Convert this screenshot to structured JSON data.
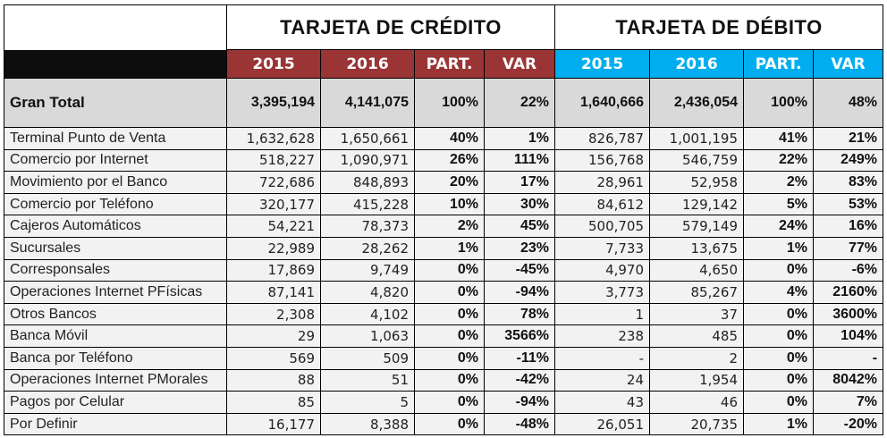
{
  "colors": {
    "credit_header": "#9b3535",
    "debit_header": "#00aeef",
    "black_bar": "#0d0d0d",
    "total_row_bg": "#d9d9d9",
    "data_row_bg": "#f2f2f2"
  },
  "groups": {
    "credit": {
      "title": "TARJETA DE CRÉDITO",
      "columns": [
        "2015",
        "2016",
        "PART.",
        "VAR"
      ]
    },
    "debit": {
      "title": "TARJETA DE DÉBITO",
      "columns": [
        "2015",
        "2016",
        "PART.",
        "VAR"
      ]
    }
  },
  "total": {
    "label": "Gran Total",
    "credit": [
      "3,395,194",
      "4,141,075",
      "100%",
      "22%"
    ],
    "debit": [
      "1,640,666",
      "2,436,054",
      "100%",
      "48%"
    ]
  },
  "rows": [
    {
      "label": "Terminal Punto de Venta",
      "credit": [
        "1,632,628",
        "1,650,661",
        "40%",
        "1%"
      ],
      "debit": [
        "826,787",
        "1,001,195",
        "41%",
        "21%"
      ]
    },
    {
      "label": "Comercio por Internet",
      "credit": [
        "518,227",
        "1,090,971",
        "26%",
        "111%"
      ],
      "debit": [
        "156,768",
        "546,759",
        "22%",
        "249%"
      ]
    },
    {
      "label": "Movimiento por el Banco",
      "credit": [
        "722,686",
        "848,893",
        "20%",
        "17%"
      ],
      "debit": [
        "28,961",
        "52,958",
        "2%",
        "83%"
      ]
    },
    {
      "label": "Comercio por Teléfono",
      "credit": [
        "320,177",
        "415,228",
        "10%",
        "30%"
      ],
      "debit": [
        "84,612",
        "129,142",
        "5%",
        "53%"
      ]
    },
    {
      "label": "Cajeros Automáticos",
      "credit": [
        "54,221",
        "78,373",
        "2%",
        "45%"
      ],
      "debit": [
        "500,705",
        "579,149",
        "24%",
        "16%"
      ]
    },
    {
      "label": "Sucursales",
      "credit": [
        "22,989",
        "28,262",
        "1%",
        "23%"
      ],
      "debit": [
        "7,733",
        "13,675",
        "1%",
        "77%"
      ]
    },
    {
      "label": "Corresponsales",
      "credit": [
        "17,869",
        "9,749",
        "0%",
        "-45%"
      ],
      "debit": [
        "4,970",
        "4,650",
        "0%",
        "-6%"
      ]
    },
    {
      "label": "Operaciones Internet PFísicas",
      "credit": [
        "87,141",
        "4,820",
        "0%",
        "-94%"
      ],
      "debit": [
        "3,773",
        "85,267",
        "4%",
        "2160%"
      ]
    },
    {
      "label": "Otros Bancos",
      "credit": [
        "2,308",
        "4,102",
        "0%",
        "78%"
      ],
      "debit": [
        "1",
        "37",
        "0%",
        "3600%"
      ]
    },
    {
      "label": "Banca Móvil",
      "credit": [
        "29",
        "1,063",
        "0%",
        "3566%"
      ],
      "debit": [
        "238",
        "485",
        "0%",
        "104%"
      ]
    },
    {
      "label": "Banca por Teléfono",
      "credit": [
        "569",
        "509",
        "0%",
        "-11%"
      ],
      "debit": [
        "-",
        "2",
        "0%",
        "-"
      ]
    },
    {
      "label": "Operaciones Internet PMorales",
      "credit": [
        "88",
        "51",
        "0%",
        "-42%"
      ],
      "debit": [
        "24",
        "1,954",
        "0%",
        "8042%"
      ]
    },
    {
      "label": "Pagos por Celular",
      "credit": [
        "85",
        "5",
        "0%",
        "-94%"
      ],
      "debit": [
        "43",
        "46",
        "0%",
        "7%"
      ]
    },
    {
      "label": "Por Definir",
      "credit": [
        "16,177",
        "8,388",
        "0%",
        "-48%"
      ],
      "debit": [
        "26,051",
        "20,735",
        "1%",
        "-20%"
      ]
    }
  ]
}
